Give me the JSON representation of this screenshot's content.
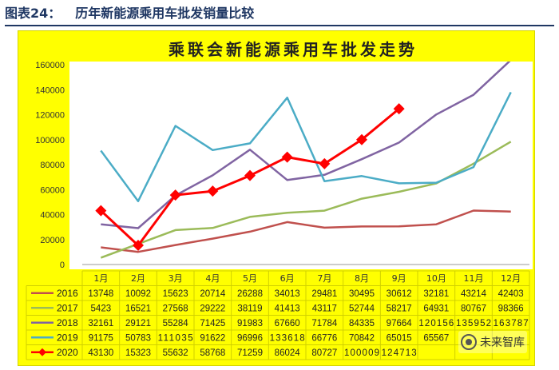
{
  "figure": {
    "label": "图表24：",
    "caption": "历年新能源乘用车批发销量比较"
  },
  "watermark": {
    "text": "未来智库",
    "icon": "wechat-icon"
  },
  "chart_data": {
    "type": "line",
    "title": "乘联会新能源乘用车批发走势",
    "categories": [
      "1月",
      "2月",
      "3月",
      "4月",
      "5月",
      "6月",
      "7月",
      "8月",
      "9月",
      "10月",
      "11月",
      "12月"
    ],
    "y_ticks": [
      0,
      20000,
      40000,
      60000,
      80000,
      100000,
      120000,
      140000,
      160000
    ],
    "ylim": [
      0,
      160000
    ],
    "grid": false,
    "legend_placement": "left-of-table",
    "background_color": "#ffff00",
    "series": [
      {
        "name": "2016",
        "color": "#c0504d",
        "marker": "none",
        "values": [
          13748,
          10092,
          15623,
          20714,
          26288,
          34013,
          29481,
          30495,
          30612,
          32181,
          43214,
          42403
        ],
        "labels": [
          "13748",
          "10092",
          "15623",
          "20714",
          "26288",
          "34013",
          "29481",
          "30495",
          "30612",
          "32181",
          "43214",
          "42403"
        ]
      },
      {
        "name": "2017",
        "color": "#9bbb59",
        "marker": "none",
        "values": [
          5423,
          16521,
          27568,
          29222,
          38119,
          41413,
          43117,
          52744,
          58217,
          64931,
          80767,
          98366
        ],
        "labels": [
          "5423",
          "16521",
          "27568",
          "29222",
          "38119",
          "41413",
          "43117",
          "52744",
          "58217",
          "64931",
          "80767",
          "98366"
        ]
      },
      {
        "name": "2018",
        "color": "#8064a2",
        "marker": "none",
        "values": [
          32161,
          29121,
          55284,
          71425,
          91983,
          67660,
          71784,
          84335,
          97664,
          120156,
          135952,
          163787
        ],
        "labels": [
          "32161",
          "29121",
          "55284",
          "71425",
          "91983",
          "67660",
          "71784",
          "84335",
          "97664",
          "120156",
          "135952",
          "163787"
        ]
      },
      {
        "name": "2019",
        "color": "#4bacc6",
        "marker": "none",
        "values": [
          91175,
          50783,
          111035,
          91622,
          96996,
          133618,
          66776,
          70842,
          65015,
          65567,
          78000,
          138000
        ],
        "labels": [
          "91175",
          "50783",
          "111035",
          "91622",
          "96996",
          "133618",
          "66776",
          "70842",
          "65015",
          "65567",
          "",
          ""
        ]
      },
      {
        "name": "2020",
        "color": "#ff0000",
        "marker": "diamond",
        "values": [
          43130,
          15323,
          55632,
          58768,
          71259,
          86024,
          80727,
          100009,
          124713,
          null,
          null,
          null
        ],
        "labels": [
          "43130",
          "15323",
          "55632",
          "58768",
          "71259",
          "86024",
          "80727",
          "100009",
          "124713",
          "",
          "",
          ""
        ]
      }
    ]
  }
}
